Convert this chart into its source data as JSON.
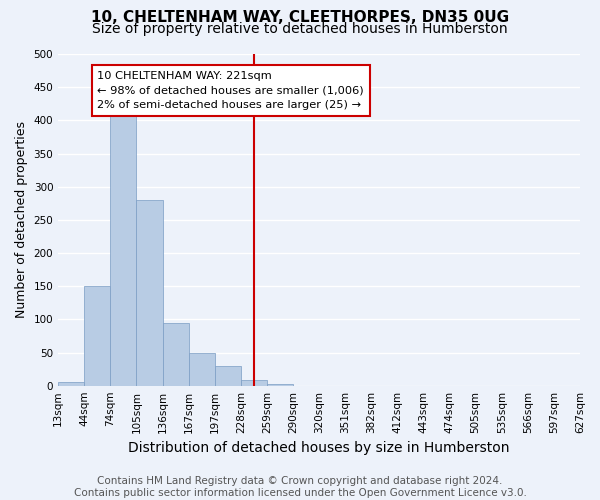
{
  "title": "10, CHELTENHAM WAY, CLEETHORPES, DN35 0UG",
  "subtitle": "Size of property relative to detached houses in Humberston",
  "xlabel": "Distribution of detached houses by size in Humberston",
  "ylabel": "Number of detached properties",
  "bin_labels": [
    "13sqm",
    "44sqm",
    "74sqm",
    "105sqm",
    "136sqm",
    "167sqm",
    "197sqm",
    "228sqm",
    "259sqm",
    "290sqm",
    "320sqm",
    "351sqm",
    "382sqm",
    "412sqm",
    "443sqm",
    "474sqm",
    "505sqm",
    "535sqm",
    "566sqm",
    "597sqm",
    "627sqm"
  ],
  "bar_values": [
    5,
    150,
    420,
    280,
    95,
    50,
    30,
    8,
    2,
    0,
    0,
    0,
    0,
    0,
    0,
    0,
    0,
    0,
    0,
    0
  ],
  "bar_color": "#b8cce4",
  "bar_edge_color": "#7a9cc4",
  "property_line_x": 7.0,
  "property_line_color": "#cc0000",
  "annotation_line1": "10 CHELTENHAM WAY: 221sqm",
  "annotation_line2": "← 98% of detached houses are smaller (1,006)",
  "annotation_line3": "2% of semi-detached houses are larger (25) →",
  "annotation_box_color": "#ffffff",
  "annotation_box_edge_color": "#cc0000",
  "ylim": [
    0,
    500
  ],
  "yticks": [
    0,
    50,
    100,
    150,
    200,
    250,
    300,
    350,
    400,
    450,
    500
  ],
  "footer_text": "Contains HM Land Registry data © Crown copyright and database right 2024.\nContains public sector information licensed under the Open Government Licence v3.0.",
  "bg_color": "#edf2fa",
  "grid_color": "#ffffff",
  "title_fontsize": 11,
  "subtitle_fontsize": 10,
  "xlabel_fontsize": 10,
  "ylabel_fontsize": 9,
  "tick_fontsize": 7.5,
  "footer_fontsize": 7.5
}
